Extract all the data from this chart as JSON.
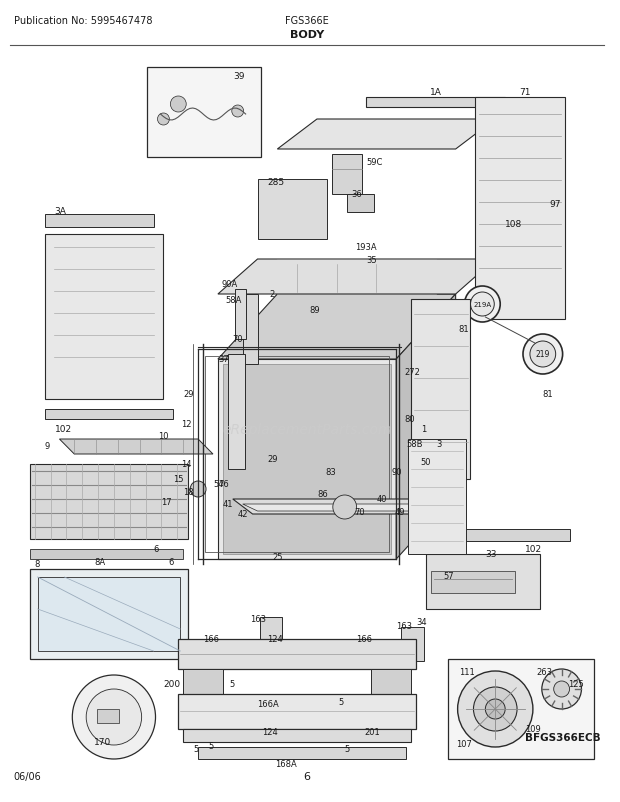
{
  "title": "BODY",
  "model": "FGS366E",
  "publication": "Publication No: 5995467478",
  "diagram_code": "BFGS366ECB",
  "date_code": "06/06",
  "page_number": "6",
  "bg_color": "#ffffff",
  "text_color": "#1a1a1a",
  "fig_width": 6.2,
  "fig_height": 8.03,
  "dpi": 100
}
